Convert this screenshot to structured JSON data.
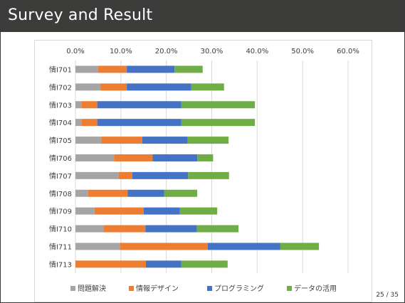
{
  "slide": {
    "title": "Survey and Result",
    "page_number": "25 / 35"
  },
  "chart_data": {
    "type": "bar",
    "orientation": "horizontal",
    "stacked": true,
    "categories": [
      "情I701",
      "情I702",
      "情I703",
      "情I704",
      "情I705",
      "情I706",
      "情I707",
      "情I708",
      "情I709",
      "情I710",
      "情I711",
      "情I713"
    ],
    "xlim": [
      0,
      60
    ],
    "xticks": [
      "0.0%",
      "10.0%",
      "20.0%",
      "30.0%",
      "40.0%",
      "50.0%",
      "60.0%"
    ],
    "x_tick_values": [
      0,
      10,
      20,
      30,
      40,
      50,
      60
    ],
    "grid": true,
    "legend_position": "bottom",
    "series": [
      {
        "name": "問題解決",
        "color": "#a5a5a5",
        "values": [
          5.0,
          5.5,
          1.3,
          1.3,
          5.7,
          8.5,
          9.5,
          2.8,
          4.2,
          6.2,
          9.8,
          0.0
        ]
      },
      {
        "name": "情報デザイン",
        "color": "#ed7d31",
        "values": [
          6.3,
          5.8,
          3.5,
          3.5,
          9.0,
          8.5,
          3.0,
          8.7,
          10.8,
          9.2,
          19.3,
          15.5
        ]
      },
      {
        "name": "プログラミング",
        "color": "#4472c4",
        "values": [
          10.5,
          14.2,
          18.5,
          18.5,
          10.0,
          9.8,
          12.3,
          8.0,
          8.0,
          11.3,
          16.0,
          7.8
        ]
      },
      {
        "name": "データの活用",
        "color": "#70ad47",
        "values": [
          6.2,
          7.2,
          16.2,
          16.2,
          9.0,
          3.5,
          9.0,
          7.3,
          8.2,
          9.2,
          8.5,
          10.2
        ]
      }
    ]
  }
}
